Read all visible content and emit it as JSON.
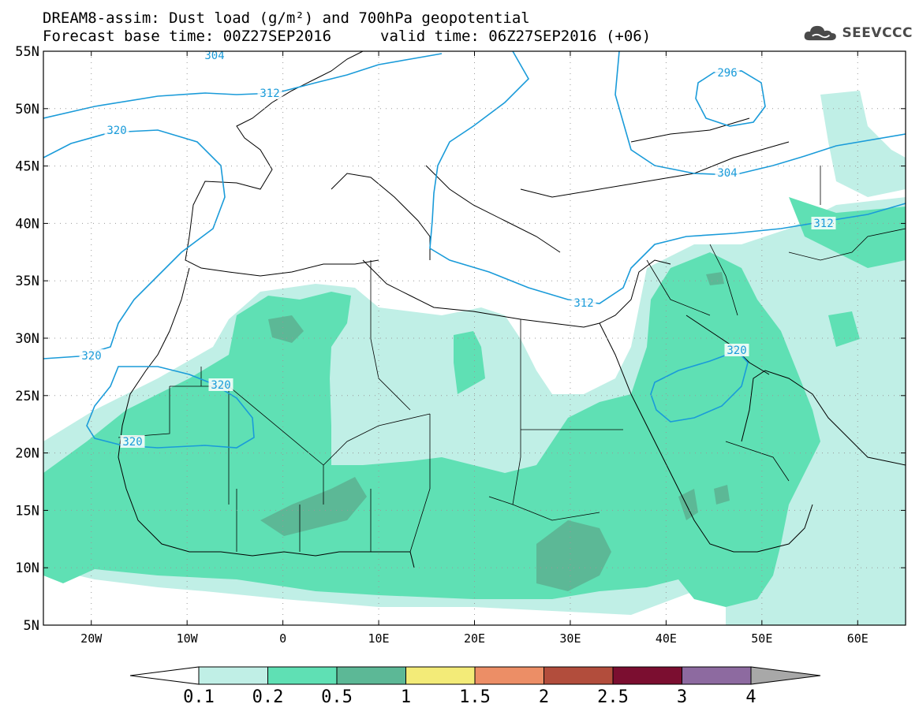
{
  "header": {
    "title_line1": "DREAM8-assim: Dust load (g/m²) and 700hPa geopotential",
    "title_line2": "Forecast base time: 00Z27SEP2016",
    "title_line2b": "valid time: 06Z27SEP2016 (+06)"
  },
  "logo": {
    "text": "SEEVCCC",
    "icon": "cloud-icon"
  },
  "map": {
    "lat_labels": [
      "55N",
      "50N",
      "45N",
      "40N",
      "35N",
      "30N",
      "25N",
      "20N",
      "15N",
      "10N",
      "5N"
    ],
    "lon_labels": [
      "20W",
      "10W",
      "0",
      "10E",
      "20E",
      "30E",
      "40E",
      "50E",
      "60E"
    ],
    "lat_values": [
      55,
      50,
      45,
      40,
      35,
      30,
      25,
      20,
      15,
      10,
      5
    ],
    "lon_values": [
      -20,
      -10,
      0,
      10,
      20,
      30,
      40,
      50,
      60
    ],
    "lon_range": [
      -25,
      65
    ],
    "lat_range": [
      5,
      55
    ],
    "grid": "dotted",
    "contour_labels": [
      "304",
      "312",
      "320",
      "320",
      "320",
      "320",
      "312",
      "296",
      "304",
      "312",
      "320"
    ],
    "colors": {
      "frame": "#000000",
      "contour": "#1a9bd9",
      "coast": "#000000"
    }
  },
  "colorbar": {
    "levels": [
      "0.1",
      "0.2",
      "0.5",
      "1",
      "1.5",
      "2",
      "2.5",
      "3",
      "4"
    ],
    "colors": [
      "#ffffff",
      "#c0efe6",
      "#5fe0b4",
      "#5cb896",
      "#f3eb78",
      "#ec8e66",
      "#b24d3c",
      "#7b0e30",
      "#8d6aa0",
      "#a8a8a8"
    ]
  }
}
